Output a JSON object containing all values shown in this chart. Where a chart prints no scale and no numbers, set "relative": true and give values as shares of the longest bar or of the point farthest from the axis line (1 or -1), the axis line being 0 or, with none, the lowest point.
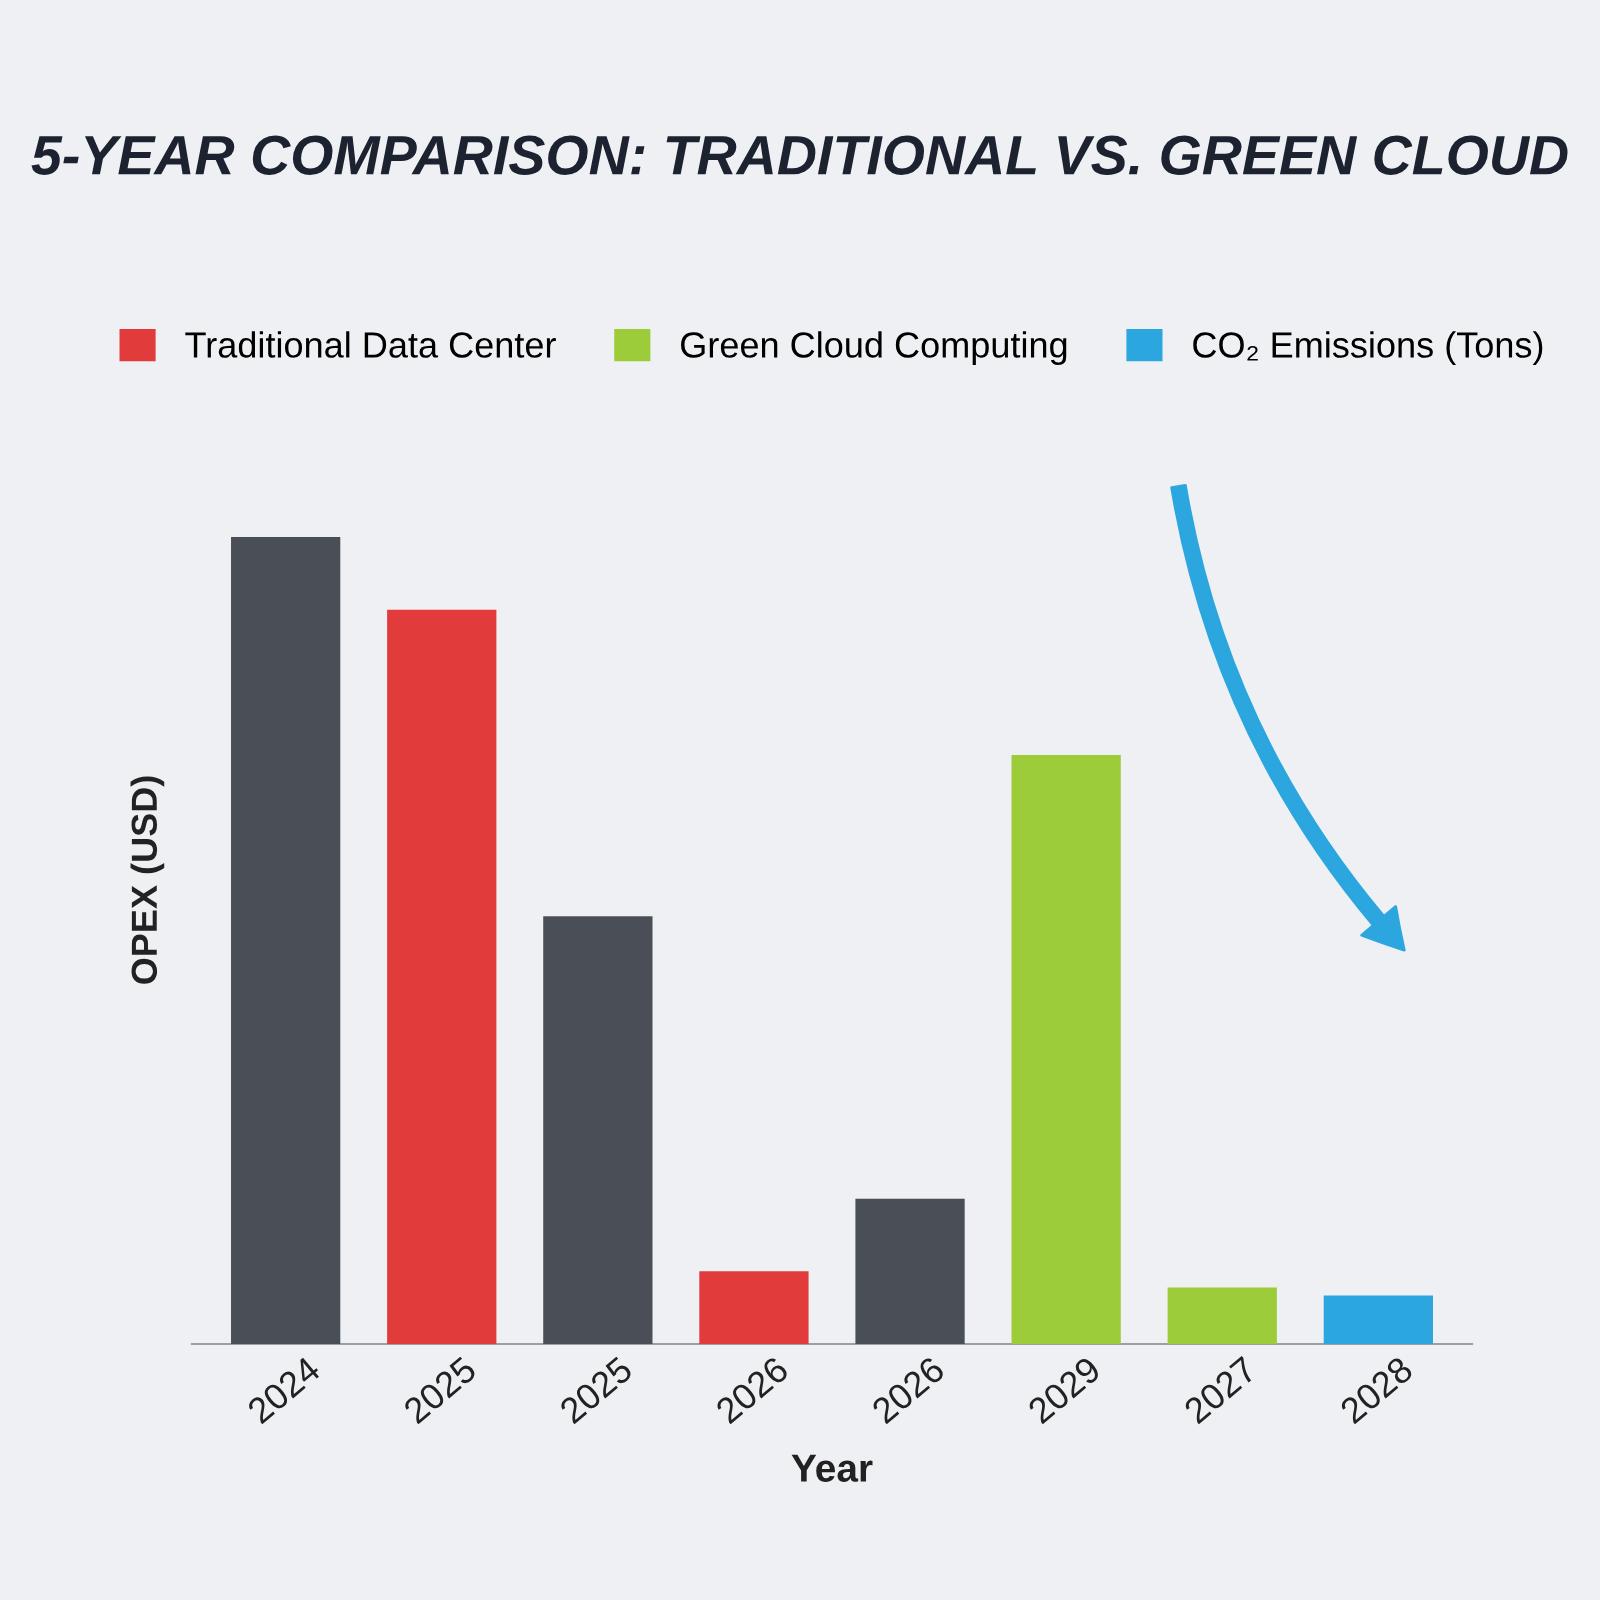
{
  "chart_data": {
    "type": "bar",
    "title": "5-YEAR COMPARISON: TRADITIONAL VS. GREEN CLOUD",
    "xlabel": "Year",
    "ylabel": "OPEX (USD)",
    "categories": [
      "2024",
      "2025",
      "2025",
      "2026",
      "2026",
      "2029",
      "2027",
      "2028"
    ],
    "relative": true,
    "legend": "top",
    "series": [
      {
        "color": "#4a4f57",
        "values": [
          1,
          null,
          0.53,
          null,
          0.18,
          null,
          null,
          null
        ]
      },
      {
        "name": "Traditional Data Center",
        "color": "#e23b3b",
        "values": [
          null,
          0.91,
          null,
          0.09,
          null,
          null,
          null,
          null
        ]
      },
      {
        "name": "Green Cloud Computing",
        "color": "#9dcc3a",
        "values": [
          null,
          null,
          null,
          null,
          null,
          0.73,
          0.07,
          null
        ]
      },
      {
        "name": "CO₂ Emissions (Tons)",
        "color": "#2ba6df",
        "values": [
          null,
          null,
          null,
          null,
          null,
          null,
          null,
          0.06
        ]
      }
    ]
  }
}
